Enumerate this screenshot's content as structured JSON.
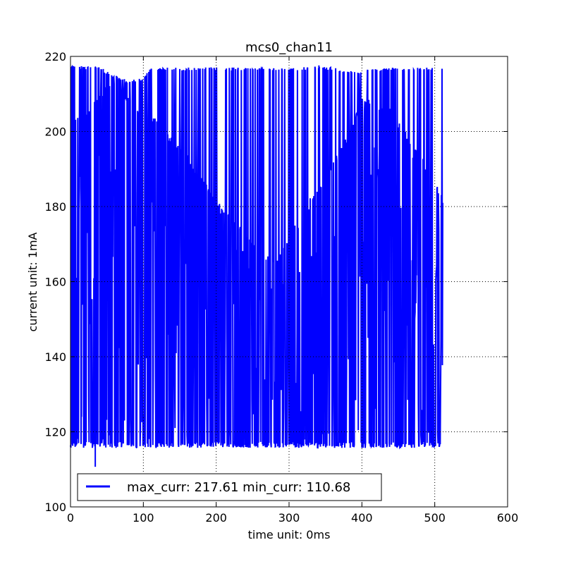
{
  "chart_data": {
    "type": "line",
    "title": "mcs0_chan11",
    "xlabel": "time unit: 0ms",
    "ylabel": "current unit: 1mA",
    "xlim": [
      0,
      600
    ],
    "ylim": [
      100,
      220
    ],
    "xticks": [
      "0",
      "100",
      "200",
      "300",
      "400",
      "500",
      "600"
    ],
    "yticks": [
      "100",
      "120",
      "140",
      "160",
      "180",
      "200",
      "220"
    ],
    "grid": true,
    "legend_position": "lower-left",
    "color": "#0000ff",
    "series": [
      {
        "name": "max_curr: 217.61 min_curr: 110.68",
        "x_range": [
          0,
          511
        ],
        "peak_envelope": [
          [
            0,
            217.5
          ],
          [
            40,
            217.2
          ],
          [
            60,
            215
          ],
          [
            80,
            213.5
          ],
          [
            100,
            214.5
          ],
          [
            110,
            217
          ],
          [
            150,
            217
          ],
          [
            200,
            217.1
          ],
          [
            230,
            217
          ],
          [
            260,
            217
          ],
          [
            300,
            217
          ],
          [
            340,
            217.4
          ],
          [
            360,
            217
          ],
          [
            390,
            216
          ],
          [
            410,
            216.5
          ],
          [
            430,
            217
          ],
          [
            460,
            217
          ],
          [
            480,
            217
          ],
          [
            511,
            217
          ]
        ],
        "trough_envelope": [
          [
            0,
            201
          ],
          [
            20,
            203
          ],
          [
            40,
            209
          ],
          [
            60,
            211
          ],
          [
            80,
            207
          ],
          [
            100,
            203.5
          ],
          [
            120,
            201
          ],
          [
            140,
            196
          ],
          [
            160,
            192
          ],
          [
            180,
            186
          ],
          [
            200,
            180
          ],
          [
            220,
            176
          ],
          [
            240,
            171
          ],
          [
            260,
            166
          ],
          [
            280,
            164
          ],
          [
            300,
            170
          ],
          [
            320,
            178
          ],
          [
            340,
            183
          ],
          [
            360,
            190
          ],
          [
            380,
            197
          ],
          [
            400,
            208
          ],
          [
            420,
            205
          ],
          [
            440,
            204
          ],
          [
            460,
            198
          ],
          [
            480,
            192
          ],
          [
            500,
            186
          ],
          [
            511,
            180
          ]
        ],
        "baseline": 116.5,
        "max_curr": 217.61,
        "min_curr": 110.68
      }
    ]
  }
}
